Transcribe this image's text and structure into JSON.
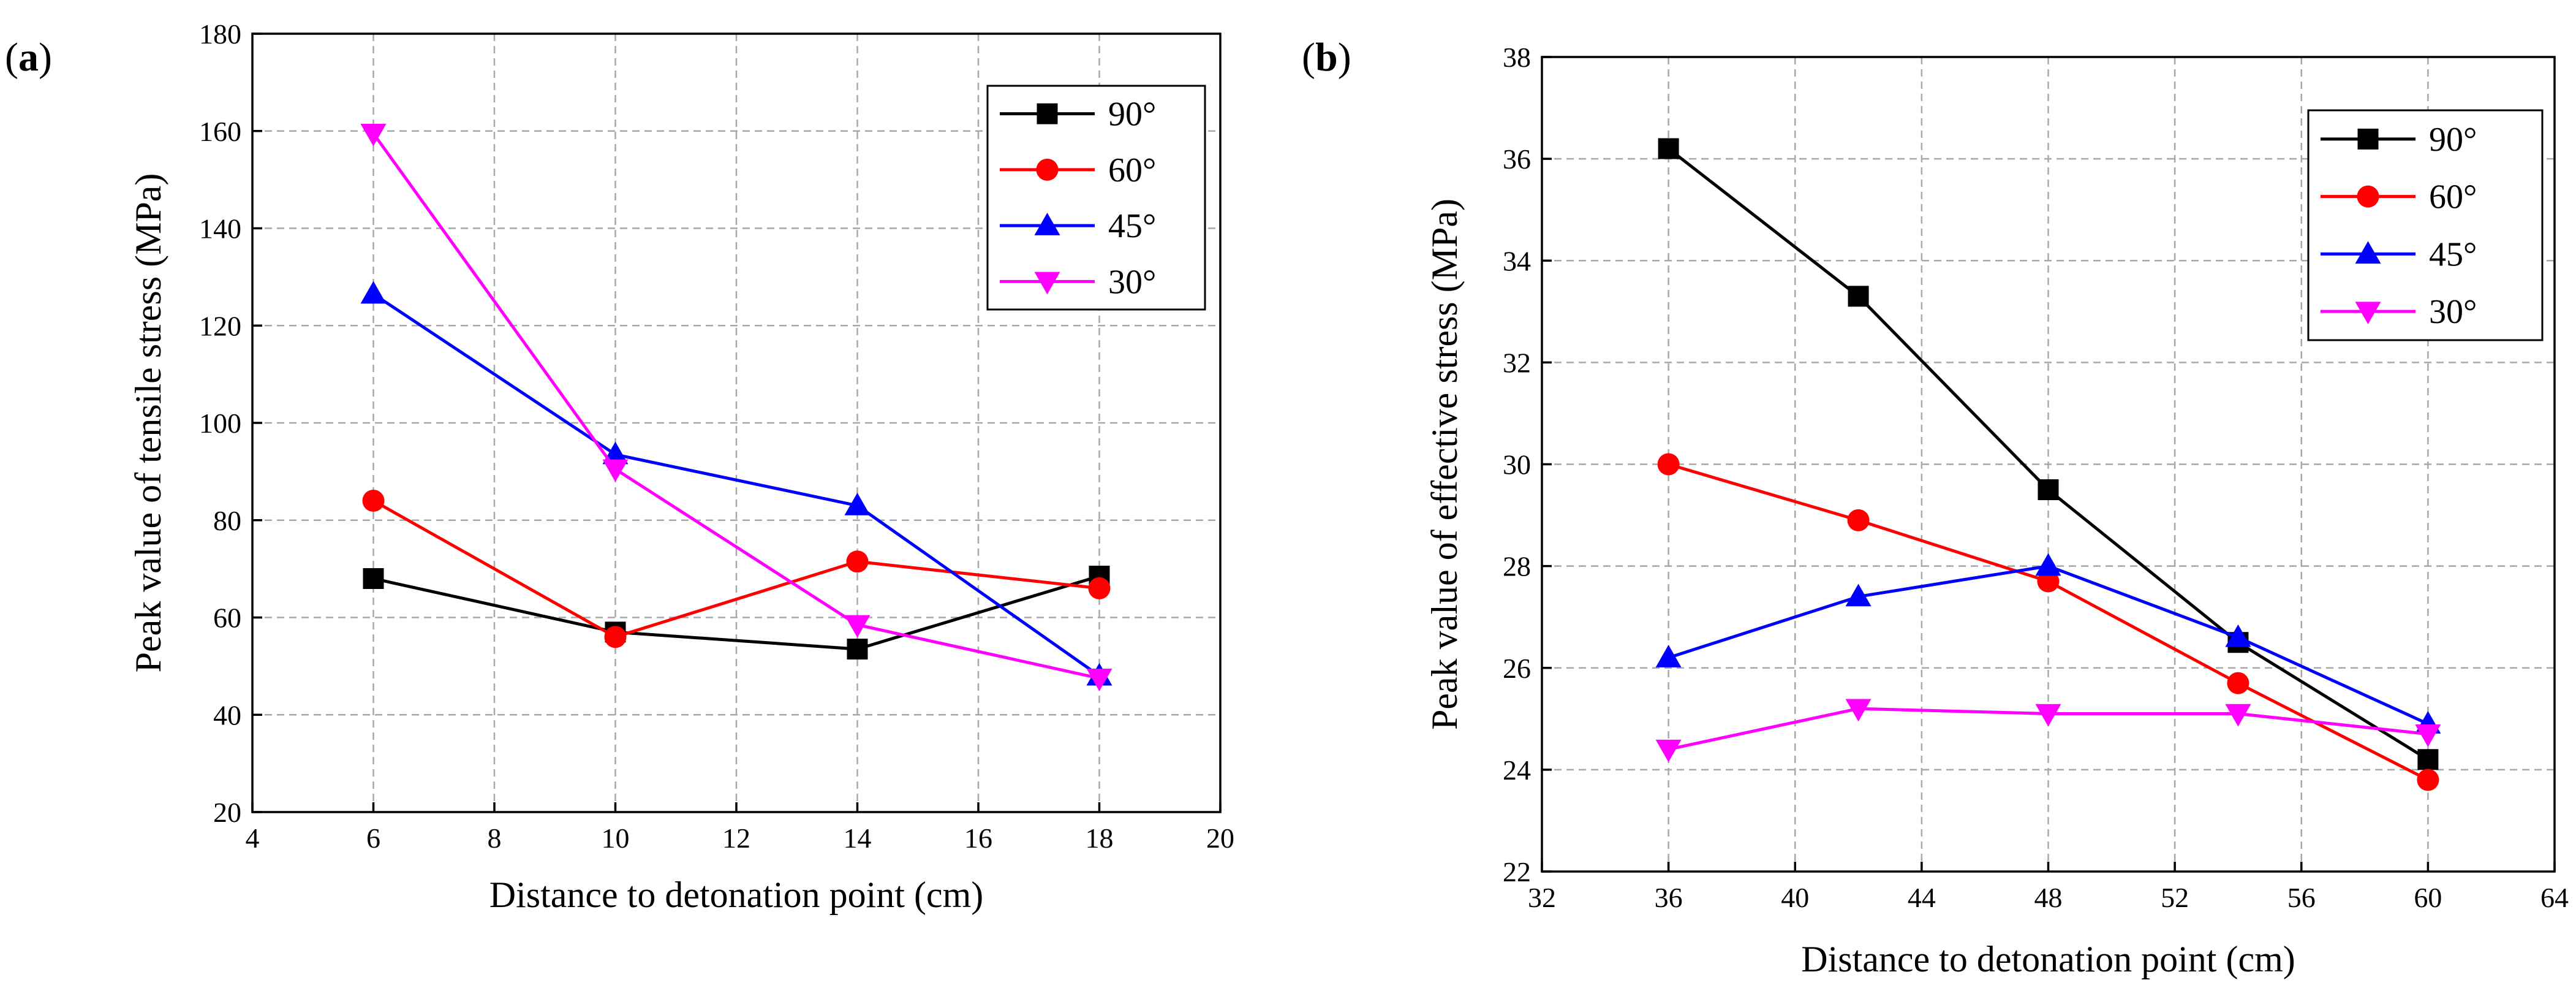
{
  "chart_data": [
    {
      "type": "line",
      "panel_label": "(a)",
      "panel_letter": "a",
      "xlabel": "Distance to detonation point (cm)",
      "ylabel": "Peak value of tensile stress (MPa)",
      "xlim": [
        4,
        20
      ],
      "ylim": [
        20,
        180
      ],
      "xticks": [
        4,
        6,
        8,
        10,
        12,
        14,
        16,
        18,
        20
      ],
      "yticks": [
        20,
        40,
        60,
        80,
        100,
        120,
        140,
        160,
        180
      ],
      "grid": true,
      "legend_position": "top-right",
      "x": [
        6,
        10,
        14,
        18
      ],
      "series": [
        {
          "name": "90°",
          "color": "#000000",
          "marker": "square",
          "values": [
            68,
            57,
            53.5,
            68.5
          ]
        },
        {
          "name": "60°",
          "color": "#ff0000",
          "marker": "circle",
          "values": [
            84,
            56,
            71.5,
            66
          ]
        },
        {
          "name": "45°",
          "color": "#0000ff",
          "marker": "triangle-up",
          "values": [
            126.5,
            93.5,
            83,
            48
          ]
        },
        {
          "name": "30°",
          "color": "#ff00ff",
          "marker": "triangle-down",
          "values": [
            159.5,
            90.5,
            58.5,
            47.5
          ]
        }
      ]
    },
    {
      "type": "line",
      "panel_label": "(b)",
      "panel_letter": "b",
      "xlabel": "Distance to detonation point (cm)",
      "ylabel": "Peak value of effective stress (MPa)",
      "xlim": [
        32,
        64
      ],
      "ylim": [
        22,
        38
      ],
      "xticks": [
        32,
        36,
        40,
        44,
        48,
        52,
        56,
        60,
        64
      ],
      "yticks": [
        22,
        24,
        26,
        28,
        30,
        32,
        34,
        36,
        38
      ],
      "grid": true,
      "legend_position": "top-right",
      "x": [
        36,
        42,
        48,
        54,
        60
      ],
      "series": [
        {
          "name": "90°",
          "color": "#000000",
          "marker": "square",
          "values": [
            36.2,
            33.3,
            29.5,
            26.5,
            24.2
          ]
        },
        {
          "name": "60°",
          "color": "#ff0000",
          "marker": "circle",
          "values": [
            30.0,
            28.9,
            27.7,
            25.7,
            23.8
          ]
        },
        {
          "name": "45°",
          "color": "#0000ff",
          "marker": "triangle-up",
          "values": [
            26.2,
            27.4,
            28.0,
            26.6,
            24.9
          ]
        },
        {
          "name": "30°",
          "color": "#ff00ff",
          "marker": "triangle-down",
          "values": [
            24.4,
            25.2,
            25.1,
            25.1,
            24.7
          ]
        }
      ]
    }
  ]
}
